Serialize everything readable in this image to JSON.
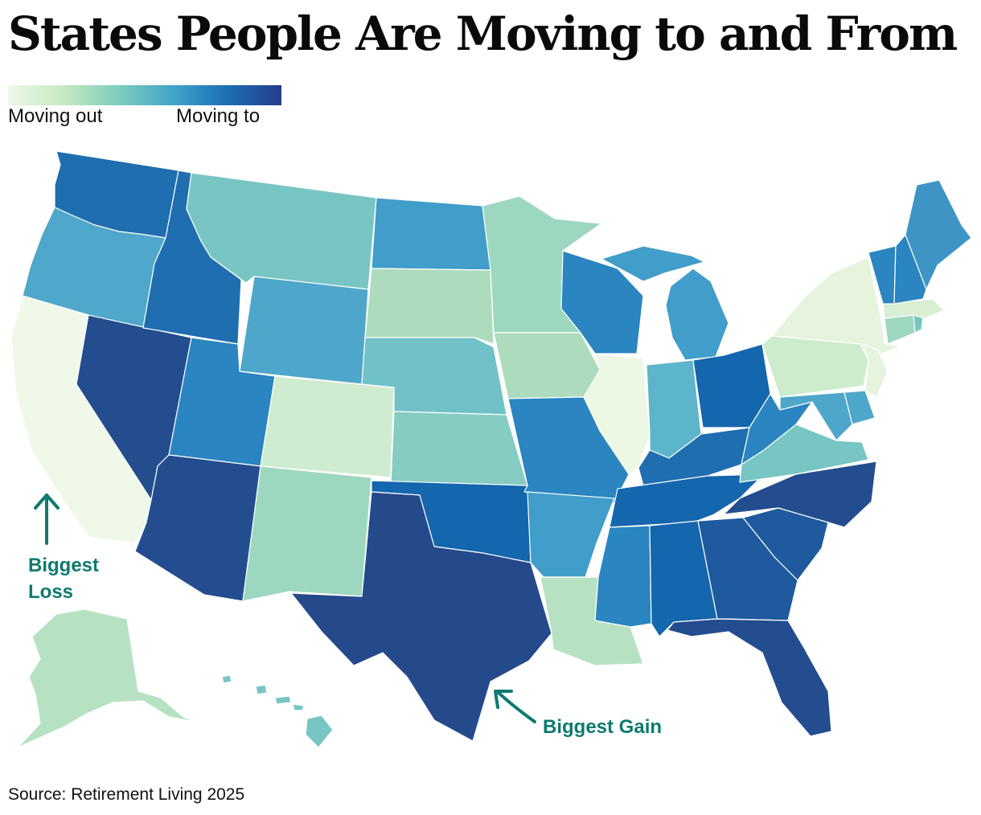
{
  "title": "States People Are Moving to and From",
  "legend": {
    "low_label": "Moving out",
    "high_label": "Moving to",
    "gradient": [
      "#edf8e9",
      "#c7e9c0",
      "#7fcdbb",
      "#41a6cb",
      "#1d6fb4",
      "#253d8a"
    ]
  },
  "annotations": {
    "loss": [
      "Biggest",
      "Loss"
    ],
    "gain": "Biggest Gain",
    "color": "#0e7a70"
  },
  "source": "Source: Retirement Living 2025",
  "state_colors": {
    "WA": "#1f6eb0",
    "OR": "#4fa7cb",
    "CA": "#eff8e9",
    "NV": "#234d8f",
    "ID": "#1f6eb0",
    "MT": "#78c6c4",
    "WY": "#4ea7ca",
    "UT": "#2a85c0",
    "AZ": "#234d8f",
    "CO": "#d0ecd0",
    "NM": "#9ed7c0",
    "ND": "#419dc9",
    "SD": "#acdcbd",
    "NE": "#70c2c8",
    "KS": "#86ccc3",
    "OK": "#1466ad",
    "TX": "#254a8c",
    "MN": "#9ed7c0",
    "IA": "#acdcbd",
    "MO": "#2a85c0",
    "AR": "#419dc9",
    "LA": "#b6e2c3",
    "WI": "#2a85c0",
    "IL": "#ecf7e4",
    "MI": "#419dc9",
    "IN": "#5db5cc",
    "OH": "#1466ad",
    "KY": "#1f6eb0",
    "TN": "#1466ad",
    "MS": "#2a85c0",
    "AL": "#1466ad",
    "GA": "#1f5a9e",
    "FL": "#234d8f",
    "SC": "#1f5a9e",
    "NC": "#234d8f",
    "VA": "#78c6c4",
    "WV": "#2a85c0",
    "PA": "#cdebcd",
    "NY": "#e6f4de",
    "NJ": "#e6f4de",
    "MD": "#4ea7ca",
    "DE": "#4ea7ca",
    "CT": "#9ed7c0",
    "RI": "#78c6c4",
    "MA": "#d8efd3",
    "VT": "#2a85c0",
    "NH": "#2a85c0",
    "ME": "#3d94c5",
    "AK": "#b6e2c3",
    "HI": "#78c6c4"
  }
}
